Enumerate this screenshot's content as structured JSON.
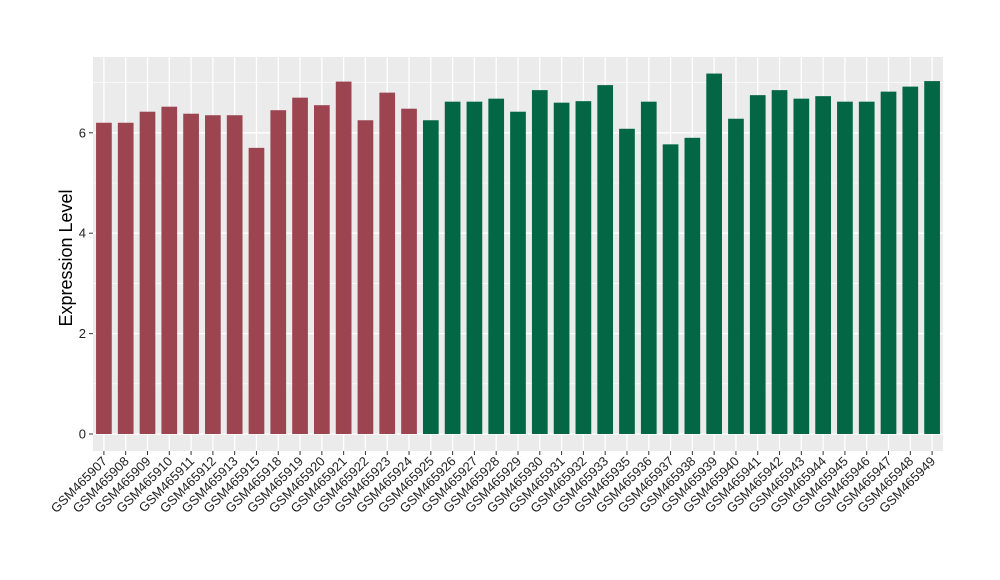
{
  "chart_data": {
    "type": "bar",
    "title": "",
    "xlabel": "",
    "ylabel": "Expression Level",
    "ylim": [
      0,
      7.4
    ],
    "yticks": [
      0,
      2,
      4,
      6
    ],
    "grid": true,
    "legend": "none",
    "colors": {
      "groupA": "#9c4450",
      "groupB": "#036644",
      "panel": "#ebebeb",
      "grid": "#ffffff"
    },
    "categories": [
      "GSM465907",
      "GSM465908",
      "GSM465909",
      "GSM465910",
      "GSM465911",
      "GSM465912",
      "GSM465913",
      "GSM465915",
      "GSM465918",
      "GSM465919",
      "GSM465920",
      "GSM465921",
      "GSM465922",
      "GSM465923",
      "GSM465924",
      "GSM465925",
      "GSM465926",
      "GSM465927",
      "GSM465928",
      "GSM465929",
      "GSM465930",
      "GSM465931",
      "GSM465932",
      "GSM465933",
      "GSM465935",
      "GSM465936",
      "GSM465937",
      "GSM465938",
      "GSM465939",
      "GSM465940",
      "GSM465941",
      "GSM465942",
      "GSM465943",
      "GSM465944",
      "GSM465945",
      "GSM465946",
      "GSM465947",
      "GSM465948",
      "GSM465949"
    ],
    "values": [
      6.2,
      6.2,
      6.42,
      6.52,
      6.38,
      6.35,
      6.35,
      5.7,
      6.45,
      6.7,
      6.55,
      7.02,
      6.25,
      6.8,
      6.48,
      6.25,
      6.62,
      6.62,
      6.68,
      6.42,
      6.85,
      6.6,
      6.63,
      6.95,
      6.08,
      6.62,
      5.77,
      5.9,
      7.18,
      6.28,
      6.75,
      6.85,
      6.68,
      6.73,
      6.62,
      6.62,
      6.82,
      6.92,
      7.03
    ],
    "groups": [
      "A",
      "A",
      "A",
      "A",
      "A",
      "A",
      "A",
      "A",
      "A",
      "A",
      "A",
      "A",
      "A",
      "A",
      "A",
      "B",
      "B",
      "B",
      "B",
      "B",
      "B",
      "B",
      "B",
      "B",
      "B",
      "B",
      "B",
      "B",
      "B",
      "B",
      "B",
      "B",
      "B",
      "B",
      "B",
      "B",
      "B",
      "B",
      "B"
    ]
  }
}
